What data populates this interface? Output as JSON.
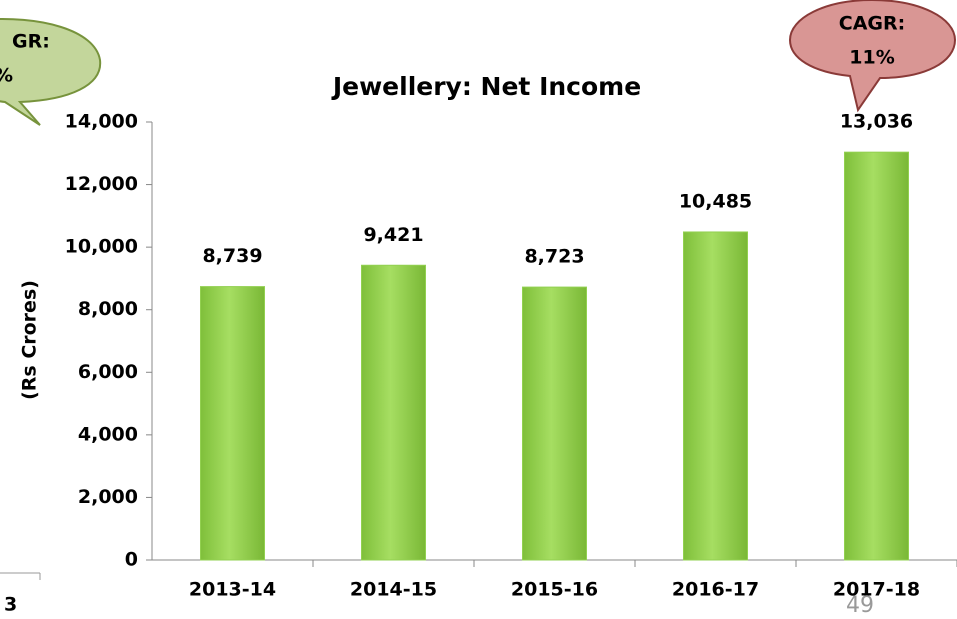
{
  "chart_data": {
    "type": "bar",
    "title": "Jewellery: Net Income",
    "ylabel": "(Rs Crores)",
    "categories": [
      "2013-14",
      "2014-15",
      "2015-16",
      "2016-17",
      "2017-18"
    ],
    "values": [
      8739,
      9421,
      8723,
      10485,
      13036
    ],
    "value_labels": [
      "8,739",
      "9,421",
      "8,723",
      "10,485",
      "13,036"
    ],
    "color": "#92d050",
    "ylim": [
      0,
      14000
    ],
    "yticks": [
      0,
      {
        "value": 2000,
        "label": "2,000"
      },
      {
        "value": 4000,
        "label": "4,000"
      },
      {
        "value": 6000,
        "label": "6,000"
      },
      {
        "value": 8000,
        "label": "8,000"
      },
      {
        "value": 10000,
        "label": "10,000"
      },
      {
        "value": 12000,
        "label": "12,000"
      },
      {
        "value": 14000,
        "label": "14,000"
      }
    ],
    "grid": false,
    "annotations": {
      "left_bubble": [
        "GR:",
        "%"
      ],
      "right_bubble": [
        "CAGR:",
        "11%"
      ],
      "left_fragment": "3",
      "page_number": "49"
    }
  }
}
